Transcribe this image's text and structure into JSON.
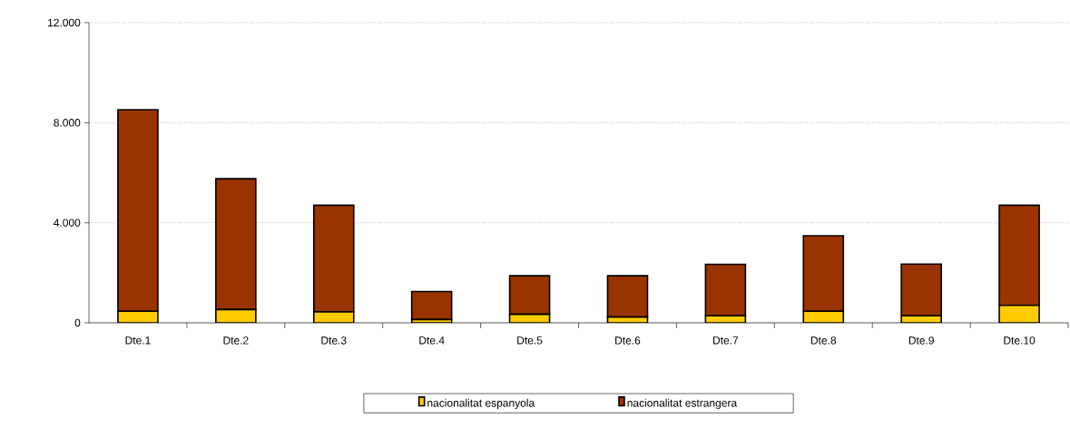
{
  "chart_data": {
    "type": "bar",
    "stacked": true,
    "categories": [
      "Dte.1",
      "Dte.2",
      "Dte.3",
      "Dte.4",
      "Dte.5",
      "Dte.6",
      "Dte.7",
      "Dte.8",
      "Dte.9",
      "Dte.10"
    ],
    "series": [
      {
        "name": "nacionalitat espanyola",
        "color": "#ffcc00",
        "values": [
          460,
          530,
          440,
          130,
          340,
          230,
          280,
          460,
          280,
          700
        ]
      },
      {
        "name": "nacionalitat estrangera",
        "color": "#993300",
        "values": [
          8060,
          5230,
          4260,
          1120,
          1540,
          1650,
          2060,
          3020,
          2070,
          4000
        ]
      }
    ],
    "ylim": [
      0,
      12000
    ],
    "yticks": [
      0,
      {
        "value": 4000,
        "label": "4.000"
      },
      {
        "value": 8000,
        "label": "8.000"
      },
      {
        "value": 12000,
        "label": "12.000"
      }
    ],
    "grid": "y",
    "legend": "bottom"
  }
}
